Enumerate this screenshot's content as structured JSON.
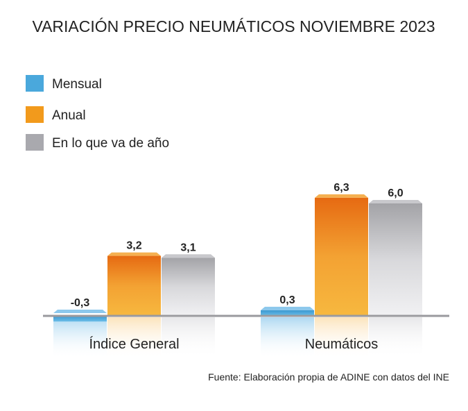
{
  "chart_data": {
    "type": "bar",
    "title": "VARIACIÓN PRECIO NEUMÁTICOS NOVIEMBRE 2023",
    "categories": [
      "Índice General",
      "Neumáticos"
    ],
    "series": [
      {
        "name": "Mensual",
        "values": [
          -0.3,
          0.3
        ],
        "labels": [
          "-0,3",
          "0,3"
        ],
        "color": "#4aa8dc"
      },
      {
        "name": "Anual",
        "values": [
          3.2,
          6.3
        ],
        "labels": [
          "3,2",
          "6,3"
        ],
        "color": "#f29a1c"
      },
      {
        "name": "En lo que va de año",
        "values": [
          3.1,
          6.0
        ],
        "labels": [
          "3,1",
          "6,0"
        ],
        "color": "#a9a9ae"
      }
    ],
    "legend": "top-left",
    "source": "Fuente: Elaboración propia de ADINE con datos del INE",
    "grid": false
  }
}
